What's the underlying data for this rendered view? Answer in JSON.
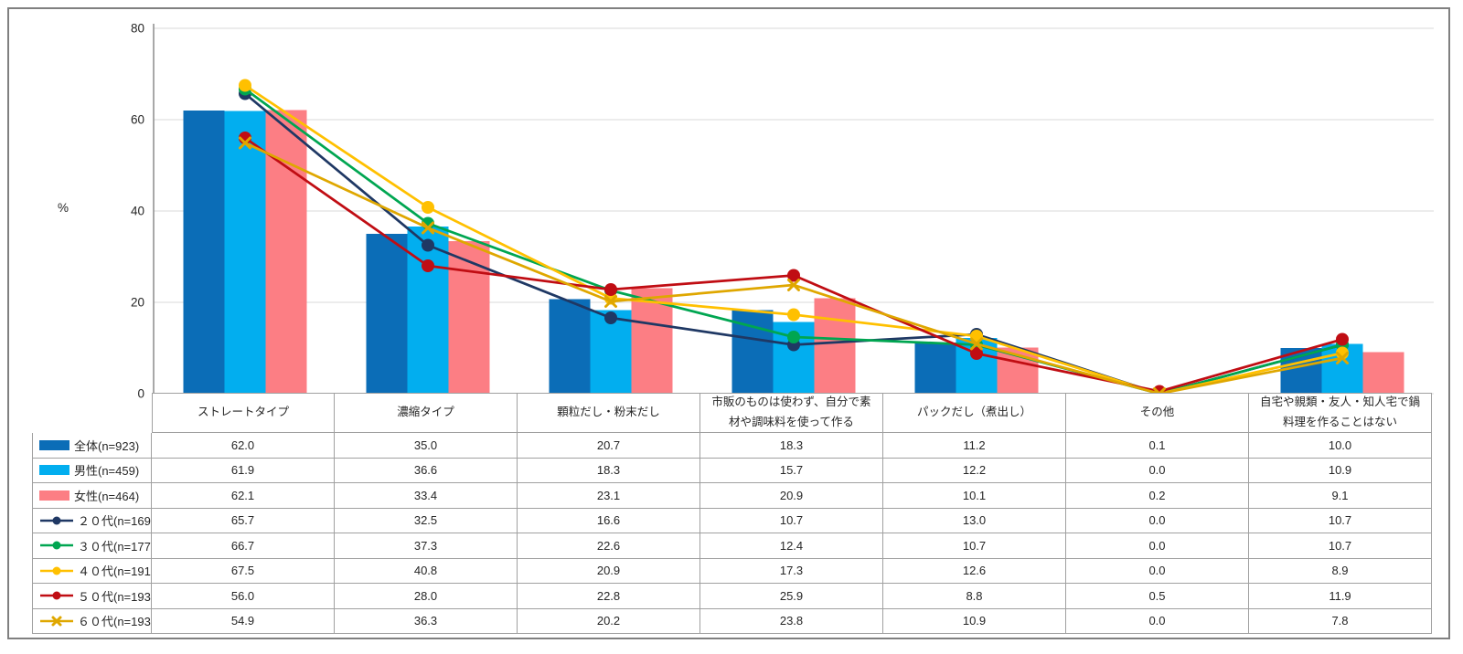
{
  "chart_data": {
    "type": "combo-bar-line",
    "title": "",
    "ylabel": "%",
    "ylim": [
      0,
      80
    ],
    "yticks": [
      0,
      20,
      40,
      60,
      80
    ],
    "grid": true,
    "legend_position": "table-left-column",
    "categories": [
      "ストレートタイプ",
      "濃縮タイプ",
      "顆粒だし・粉末だし",
      "市販のものは使わず、自分で素材や調味料を使って作る",
      "パックだし（煮出し）",
      "その他",
      "自宅や親類・友人・知人宅で鍋料理を作ることはない"
    ],
    "series": [
      {
        "name": "全体(n=923)",
        "type": "bar",
        "marker": "none",
        "color": "#0B6DB7",
        "values": [
          62.0,
          35.0,
          20.7,
          18.3,
          11.2,
          0.1,
          10.0
        ]
      },
      {
        "name": "男性(n=459)",
        "type": "bar",
        "marker": "none",
        "color": "#02AEEF",
        "values": [
          61.9,
          36.6,
          18.3,
          15.7,
          12.2,
          0.0,
          10.9
        ]
      },
      {
        "name": "女性(n=464)",
        "type": "bar",
        "marker": "none",
        "color": "#FC7E84",
        "values": [
          62.1,
          33.4,
          23.1,
          20.9,
          10.1,
          0.2,
          9.1
        ]
      },
      {
        "name": "２０代(n=169)",
        "type": "line",
        "marker": "circle",
        "color": "#1F3864",
        "values": [
          65.7,
          32.5,
          16.6,
          10.7,
          13.0,
          0.0,
          10.7
        ]
      },
      {
        "name": "３０代(n=177)",
        "type": "line",
        "marker": "circle",
        "color": "#00A651",
        "values": [
          66.7,
          37.3,
          22.6,
          12.4,
          10.7,
          0.0,
          10.7
        ]
      },
      {
        "name": "４０代(n=191)",
        "type": "line",
        "marker": "circle",
        "color": "#FFC000",
        "values": [
          67.5,
          40.8,
          20.9,
          17.3,
          12.6,
          0.0,
          8.9
        ]
      },
      {
        "name": "５０代(n=193)",
        "type": "line",
        "marker": "circle",
        "color": "#C00D13",
        "values": [
          56.0,
          28.0,
          22.8,
          25.9,
          8.8,
          0.5,
          11.9
        ]
      },
      {
        "name": "６０代(n=193)",
        "type": "line",
        "marker": "x",
        "color": "#DFA700",
        "values": [
          54.9,
          36.3,
          20.2,
          23.8,
          10.9,
          0.0,
          7.8
        ]
      }
    ],
    "value_format": "one-decimal"
  },
  "colors": {
    "gridline": "#D9D9D9",
    "axis": "#8C8C8C",
    "table_border": "#A0A0A0",
    "text": "#262626",
    "frame_border": "#808080"
  }
}
